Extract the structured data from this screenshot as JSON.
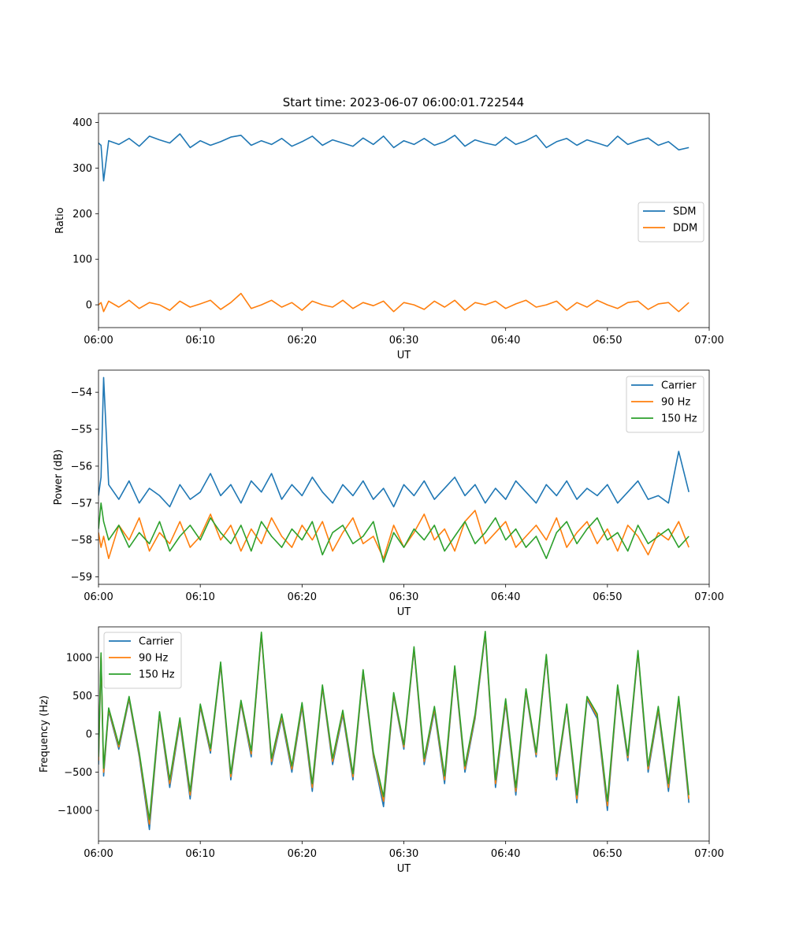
{
  "chart_data": [
    {
      "type": "line",
      "title": "Start time: 2023-06-07 06:00:01.722544",
      "xlabel": "UT",
      "ylabel": "Ratio",
      "xlim": [
        "06:00",
        "07:00"
      ],
      "ylim": [
        -50,
        420
      ],
      "xticks": [
        "06:00",
        "06:10",
        "06:20",
        "06:30",
        "06:40",
        "06:50",
        "07:00"
      ],
      "yticks": [
        0,
        100,
        200,
        300,
        400
      ],
      "legend": "center-right",
      "x_minutes": [
        0,
        0.25,
        0.5,
        1,
        2,
        3,
        4,
        5,
        6,
        7,
        8,
        9,
        10,
        11,
        12,
        13,
        14,
        15,
        16,
        17,
        18,
        19,
        20,
        21,
        22,
        23,
        24,
        25,
        26,
        27,
        28,
        29,
        30,
        31,
        32,
        33,
        34,
        35,
        36,
        37,
        38,
        39,
        40,
        41,
        42,
        43,
        44,
        45,
        46,
        47,
        48,
        49,
        50,
        51,
        52,
        53,
        54,
        55,
        56,
        57,
        58,
        59,
        60
      ],
      "series": [
        {
          "name": "SDM",
          "color": "#1f77b4",
          "values": [
            355,
            350,
            272,
            360,
            352,
            365,
            348,
            370,
            362,
            355,
            375,
            345,
            360,
            350,
            358,
            368,
            372,
            350,
            360,
            352,
            365,
            348,
            358,
            370,
            350,
            362,
            355,
            348,
            366,
            352,
            370,
            345,
            360,
            352,
            365,
            350,
            358,
            372,
            348,
            362,
            355,
            350,
            368,
            352,
            360,
            372,
            345,
            358,
            365,
            350,
            362,
            355,
            348,
            370,
            352,
            360,
            366,
            350,
            358,
            340,
            345
          ]
        },
        {
          "name": "DDM",
          "color": "#ff7f0e",
          "values": [
            0,
            5,
            -15,
            8,
            -5,
            10,
            -8,
            5,
            0,
            -12,
            8,
            -5,
            2,
            10,
            -10,
            5,
            25,
            -8,
            0,
            10,
            -5,
            5,
            -12,
            8,
            0,
            -5,
            10,
            -8,
            5,
            -2,
            8,
            -15,
            5,
            0,
            -10,
            8,
            -5,
            10,
            -12,
            5,
            0,
            8,
            -8,
            2,
            10,
            -5,
            0,
            8,
            -12,
            5,
            -5,
            10,
            0,
            -8,
            5,
            8,
            -10,
            2,
            5,
            -15,
            5
          ]
        }
      ]
    },
    {
      "type": "line",
      "xlabel": "UT",
      "ylabel": "Power (dB)",
      "xlim": [
        "06:00",
        "07:00"
      ],
      "ylim": [
        -59.2,
        -53.4
      ],
      "xticks": [
        "06:00",
        "06:10",
        "06:20",
        "06:30",
        "06:40",
        "06:50",
        "07:00"
      ],
      "yticks": [
        -54,
        -55,
        -56,
        -57,
        -58,
        -59
      ],
      "legend": "top-right",
      "x_minutes": [
        0,
        0.25,
        0.5,
        1,
        2,
        3,
        4,
        5,
        6,
        7,
        8,
        9,
        10,
        11,
        12,
        13,
        14,
        15,
        16,
        17,
        18,
        19,
        20,
        21,
        22,
        23,
        24,
        25,
        26,
        27,
        28,
        29,
        30,
        31,
        32,
        33,
        34,
        35,
        36,
        37,
        38,
        39,
        40,
        41,
        42,
        43,
        44,
        45,
        46,
        47,
        48,
        49,
        50,
        51,
        52,
        53,
        54,
        55,
        56,
        57,
        58,
        59,
        60
      ],
      "series": [
        {
          "name": "Carrier",
          "color": "#1f77b4",
          "values": [
            -56.8,
            -56.3,
            -53.6,
            -56.5,
            -56.9,
            -56.4,
            -57.0,
            -56.6,
            -56.8,
            -57.1,
            -56.5,
            -56.9,
            -56.7,
            -56.2,
            -56.8,
            -56.5,
            -57.0,
            -56.4,
            -56.7,
            -56.2,
            -56.9,
            -56.5,
            -56.8,
            -56.3,
            -56.7,
            -57.0,
            -56.5,
            -56.8,
            -56.4,
            -56.9,
            -56.6,
            -57.1,
            -56.5,
            -56.8,
            -56.4,
            -56.9,
            -56.6,
            -56.3,
            -56.8,
            -56.5,
            -57.0,
            -56.6,
            -56.9,
            -56.4,
            -56.7,
            -57.0,
            -56.5,
            -56.8,
            -56.4,
            -56.9,
            -56.6,
            -56.8,
            -56.5,
            -57.0,
            -56.7,
            -56.4,
            -56.9,
            -56.8,
            -57.0,
            -55.6,
            -56.7
          ]
        },
        {
          "name": "90 Hz",
          "color": "#ff7f0e",
          "values": [
            -57.8,
            -58.2,
            -57.9,
            -58.5,
            -57.6,
            -58.0,
            -57.4,
            -58.3,
            -57.8,
            -58.1,
            -57.5,
            -58.2,
            -57.9,
            -57.3,
            -58.0,
            -57.6,
            -58.3,
            -57.7,
            -58.1,
            -57.4,
            -57.9,
            -58.2,
            -57.6,
            -58.0,
            -57.5,
            -58.3,
            -57.8,
            -57.4,
            -58.1,
            -57.9,
            -58.5,
            -57.6,
            -58.2,
            -57.8,
            -57.3,
            -58.0,
            -57.7,
            -58.3,
            -57.5,
            -57.2,
            -58.1,
            -57.8,
            -57.5,
            -58.2,
            -57.9,
            -57.6,
            -58.0,
            -57.4,
            -58.2,
            -57.8,
            -57.5,
            -58.1,
            -57.7,
            -58.3,
            -57.6,
            -57.9,
            -58.4,
            -57.8,
            -58.0,
            -57.5,
            -58.2
          ]
        },
        {
          "name": "150 Hz",
          "color": "#2ca02c",
          "values": [
            -57.7,
            -57.0,
            -57.5,
            -58.0,
            -57.6,
            -58.2,
            -57.8,
            -58.1,
            -57.5,
            -58.3,
            -57.9,
            -57.6,
            -58.0,
            -57.4,
            -57.8,
            -58.1,
            -57.6,
            -58.3,
            -57.5,
            -57.9,
            -58.2,
            -57.7,
            -58.0,
            -57.5,
            -58.4,
            -57.8,
            -57.6,
            -58.1,
            -57.9,
            -57.5,
            -58.6,
            -57.8,
            -58.2,
            -57.7,
            -58.0,
            -57.6,
            -58.3,
            -57.9,
            -57.5,
            -58.1,
            -57.8,
            -57.4,
            -58.0,
            -57.7,
            -58.2,
            -57.9,
            -58.5,
            -57.8,
            -57.5,
            -58.1,
            -57.7,
            -57.4,
            -58.0,
            -57.8,
            -58.3,
            -57.6,
            -58.1,
            -57.9,
            -57.7,
            -58.2,
            -57.9
          ]
        }
      ]
    },
    {
      "type": "line",
      "xlabel": "UT",
      "ylabel": "Frequency (Hz)",
      "xlim": [
        "06:00",
        "07:00"
      ],
      "ylim": [
        -1400,
        1400
      ],
      "xticks": [
        "06:00",
        "06:10",
        "06:20",
        "06:30",
        "06:40",
        "06:50",
        "07:00"
      ],
      "yticks": [
        1000,
        500,
        0,
        -500,
        -1000
      ],
      "legend": "top-left",
      "x_minutes": [
        0,
        0.25,
        0.5,
        1,
        2,
        3,
        4,
        5,
        6,
        7,
        8,
        9,
        10,
        11,
        12,
        13,
        14,
        15,
        16,
        17,
        18,
        19,
        20,
        21,
        22,
        23,
        24,
        25,
        26,
        27,
        28,
        29,
        30,
        31,
        32,
        33,
        34,
        35,
        36,
        37,
        38,
        39,
        40,
        41,
        42,
        43,
        44,
        45,
        46,
        47,
        48,
        49,
        50,
        51,
        52,
        53,
        54,
        55,
        56,
        57,
        58,
        59,
        60
      ],
      "series": [
        {
          "name": "Carrier",
          "color": "#1f77b4",
          "values": [
            -400,
            1000,
            -550,
            300,
            -200,
            450,
            -300,
            -1250,
            250,
            -700,
            150,
            -850,
            350,
            -250,
            900,
            -600,
            400,
            -300,
            1300,
            -400,
            200,
            -500,
            350,
            -750,
            600,
            -400,
            250,
            -600,
            800,
            -300,
            -950,
            500,
            -200,
            1100,
            -400,
            300,
            -650,
            850,
            -500,
            200,
            1300,
            -700,
            400,
            -800,
            550,
            -300,
            1000,
            -600,
            350,
            -900,
            450,
            200,
            -1000,
            600,
            -350,
            1050,
            -500,
            300,
            -750,
            450,
            -900
          ]
        },
        {
          "name": "90 Hz",
          "color": "#ff7f0e",
          "values": [
            -350,
            1030,
            -500,
            320,
            -170,
            470,
            -270,
            -1180,
            270,
            -650,
            180,
            -800,
            370,
            -220,
            920,
            -560,
            420,
            -260,
            1310,
            -360,
            230,
            -460,
            380,
            -700,
            620,
            -360,
            280,
            -560,
            820,
            -270,
            -880,
            520,
            -170,
            1120,
            -360,
            330,
            -600,
            870,
            -460,
            230,
            1320,
            -650,
            430,
            -750,
            570,
            -270,
            1020,
            -560,
            370,
            -850,
            470,
            230,
            -940,
            620,
            -310,
            1070,
            -460,
            330,
            -700,
            470,
            -850
          ]
        },
        {
          "name": "150 Hz",
          "color": "#2ca02c",
          "values": [
            -300,
            1060,
            -450,
            340,
            -140,
            490,
            -240,
            -1120,
            290,
            -600,
            210,
            -750,
            390,
            -190,
            940,
            -520,
            440,
            -220,
            1330,
            -320,
            260,
            -420,
            410,
            -650,
            640,
            -320,
            310,
            -520,
            840,
            -240,
            -820,
            540,
            -140,
            1140,
            -320,
            360,
            -550,
            890,
            -420,
            260,
            1340,
            -600,
            460,
            -700,
            590,
            -240,
            1040,
            -520,
            390,
            -800,
            490,
            260,
            -880,
            640,
            -280,
            1090,
            -420,
            360,
            -650,
            490,
            -800
          ]
        }
      ]
    }
  ]
}
